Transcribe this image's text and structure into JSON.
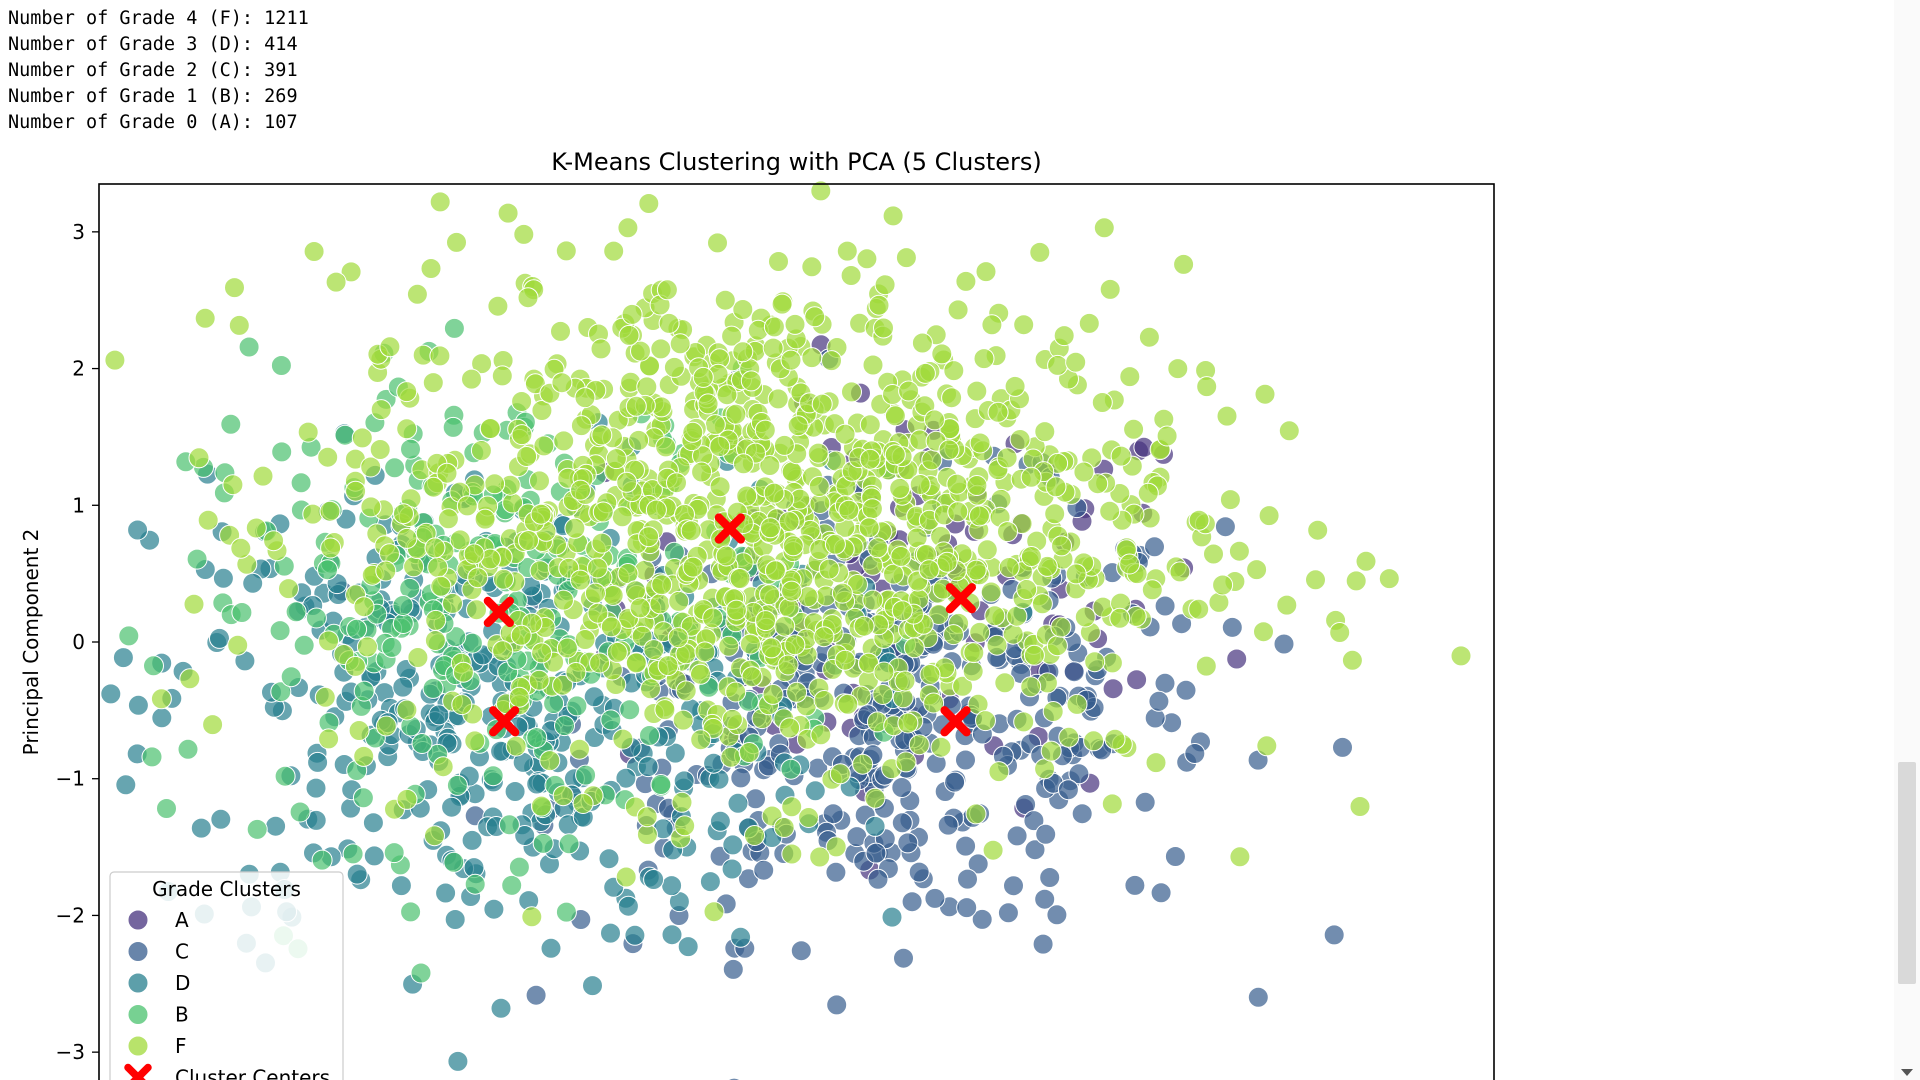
{
  "output_lines": [
    "Number of Grade 4 (F): 1211",
    "Number of Grade 3 (D): 414",
    "Number of Grade 2 (C): 391",
    "Number of Grade 1 (B): 269",
    "Number of Grade 0 (A): 107"
  ],
  "chart_data": {
    "type": "scatter",
    "title": "K-Means Clustering with PCA (5 Clusters)",
    "xlabel": "",
    "ylabel": "Principal Component 2",
    "xlim": [
      -3.6,
      4.25
    ],
    "ylim": [
      -3.35,
      3.35
    ],
    "yticks": [
      3,
      2,
      1,
      0,
      -1,
      -2,
      -3
    ],
    "ytick_labels": [
      "3",
      "2",
      "1",
      "0",
      "−1",
      "−2",
      "−3"
    ],
    "grid": false,
    "legend": {
      "title": "Grade Clusters",
      "location": "lower-left",
      "entries": [
        "A",
        "C",
        "D",
        "B",
        "F",
        "Cluster Centers"
      ]
    },
    "series": [
      {
        "name": "A",
        "color": "#46327e",
        "count": 107,
        "approx_center": [
          1.0,
          0.3
        ]
      },
      {
        "name": "C",
        "color": "#365c8d",
        "count": 391,
        "approx_center": [
          0.9,
          -0.55
        ]
      },
      {
        "name": "D",
        "color": "#277f8e",
        "count": 414,
        "approx_center": [
          -1.4,
          -0.5
        ]
      },
      {
        "name": "B",
        "color": "#4ac16d",
        "count": 269,
        "approx_center": [
          -1.4,
          0.25
        ]
      },
      {
        "name": "F",
        "color": "#a0da39",
        "count": 1211,
        "approx_center": [
          0.1,
          0.85
        ]
      }
    ],
    "cluster_centers": [
      {
        "x": -1.35,
        "y": 0.22
      },
      {
        "x": -1.32,
        "y": -0.58
      },
      {
        "x": -0.05,
        "y": 0.83
      },
      {
        "x": 1.25,
        "y": 0.32
      },
      {
        "x": 1.22,
        "y": -0.58
      }
    ],
    "center_color": "#ff0000"
  }
}
